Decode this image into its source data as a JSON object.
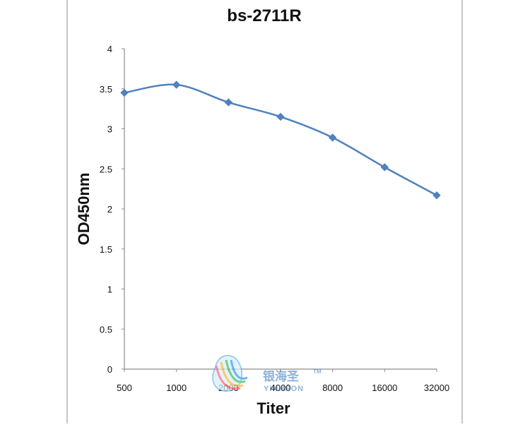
{
  "chart_data": {
    "type": "line",
    "title": "bs-2711R",
    "xlabel": "Titer",
    "ylabel": "OD450nm",
    "categories": [
      "500",
      "1000",
      "2000",
      "4000",
      "8000",
      "16000",
      "32000"
    ],
    "series": [
      {
        "values": [
          3.45,
          3.55,
          3.33,
          3.15,
          2.89,
          2.52,
          2.17
        ]
      }
    ],
    "y_ticks": [
      "0",
      "0.5",
      "1",
      "1.5",
      "2",
      "2.5",
      "3",
      "3.5",
      "4"
    ],
    "ylim": [
      0,
      4
    ],
    "grid": false,
    "legend": "none",
    "colors": {
      "line": "#4f81bd",
      "marker": "#4f81bd",
      "axis": "#8c8c8c",
      "frame": "#8c8c8c"
    }
  },
  "watermark": {
    "brand_text": "银海圣",
    "trademark": "TM",
    "sub_text": "YINHSON"
  }
}
